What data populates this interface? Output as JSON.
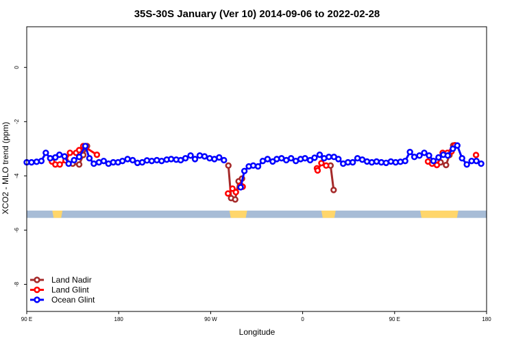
{
  "chart_data": {
    "type": "line",
    "title": "35S-30S January (Ver 10)   2014-09-06 to 2022-02-28",
    "xlabel": "Longitude",
    "ylabel": "XCO2 - MLO trend (ppm)",
    "xlim": [
      -270,
      -135
    ],
    "ylim": [
      -9,
      1.5
    ],
    "x_ticks": [
      {
        "value": -270,
        "label": "90 E"
      },
      {
        "value": -243,
        "label": "180"
      },
      {
        "value": -216,
        "label": "90 W"
      },
      {
        "value": -189,
        "label": "0"
      },
      {
        "value": -162,
        "label": "90 E"
      },
      {
        "value": -135,
        "label": "180"
      }
    ],
    "y_ticks": [
      {
        "value": 0,
        "label": "0"
      },
      {
        "value": -2,
        "label": "-2"
      },
      {
        "value": -4,
        "label": "-4"
      },
      {
        "value": -6,
        "label": "-6"
      },
      {
        "value": -8,
        "label": "-8"
      }
    ],
    "grid": false,
    "legend_position": "bottom-left",
    "land_strip": {
      "y_top": -5.28,
      "y_bottom": -5.55,
      "ocean_color": "#a7bcd6",
      "land_color": "#ffd66b",
      "land_segments": [
        [
          -262.5,
          -259.5
        ],
        [
          -210.5,
          -205.3
        ],
        [
          -183.5,
          -179.3
        ],
        [
          -154.5,
          -143.3
        ]
      ]
    },
    "series": [
      {
        "name": "Land Nadir",
        "color": "#a52a2a",
        "segments": [
          [
            [
              -256.5,
              -3.55
            ],
            [
              -254.6,
              -3.58
            ],
            [
              -253.4,
              -3.23
            ],
            [
              -252.3,
              -2.9
            ]
          ],
          [
            [
              -210.8,
              -3.62
            ],
            [
              -210.0,
              -4.82
            ],
            [
              -208.8,
              -4.87
            ],
            [
              -207.8,
              -4.2
            ],
            [
              -206.8,
              -4.1
            ]
          ],
          [
            [
              -180.8,
              -3.62
            ],
            [
              -179.9,
              -4.52
            ]
          ],
          [
            [
              -148.5,
              -3.5
            ],
            [
              -146.9,
              -3.6
            ],
            [
              -145.9,
              -3.23
            ],
            [
              -144.8,
              -2.88
            ]
          ]
        ]
      },
      {
        "name": "Land Glint",
        "color": "#ff0000",
        "segments": [
          [
            [
              -262.6,
              -3.47
            ],
            [
              -261.6,
              -3.58
            ],
            [
              -260.3,
              -3.58
            ],
            [
              -258.6,
              -3.43
            ],
            [
              -257.3,
              -3.15
            ],
            [
              -255.5,
              -3.15
            ],
            [
              -254.6,
              -3.05
            ],
            [
              -253.4,
              -2.9
            ],
            [
              -249.4,
              -3.22
            ]
          ],
          [
            [
              -210.9,
              -4.65
            ],
            [
              -209.6,
              -4.47
            ],
            [
              -208.6,
              -4.6
            ],
            [
              -207.2,
              -4.35
            ],
            [
              -206.6,
              -4.4
            ]
          ],
          [
            [
              -184.8,
              -3.72
            ],
            [
              -184.6,
              -3.8
            ],
            [
              -183.5,
              -3.53
            ],
            [
              -182.1,
              -3.62
            ]
          ],
          [
            [
              -152.2,
              -3.47
            ],
            [
              -151.0,
              -3.55
            ],
            [
              -149.6,
              -3.6
            ],
            [
              -147.9,
              -3.15
            ],
            [
              -146.5,
              -3.15
            ],
            [
              -145.3,
              -3.1
            ],
            [
              -144.3,
              -2.87
            ]
          ],
          [
            [
              -138.1,
              -3.23
            ]
          ]
        ]
      },
      {
        "name": "Ocean Glint",
        "color": "#0000ff",
        "segments": [
          [
            [
              -270.0,
              -3.5
            ],
            [
              -268.6,
              -3.5
            ],
            [
              -267.1,
              -3.48
            ],
            [
              -265.7,
              -3.45
            ],
            [
              -264.4,
              -3.15
            ],
            [
              -263.1,
              -3.35
            ],
            [
              -261.6,
              -3.32
            ],
            [
              -260.4,
              -3.22
            ],
            [
              -258.9,
              -3.28
            ],
            [
              -257.7,
              -3.55
            ],
            [
              -256.1,
              -3.42
            ],
            [
              -254.6,
              -3.3
            ],
            [
              -252.8,
              -2.9
            ],
            [
              -251.6,
              -3.35
            ],
            [
              -250.3,
              -3.55
            ],
            [
              -248.8,
              -3.5
            ],
            [
              -247.4,
              -3.45
            ],
            [
              -246.0,
              -3.55
            ],
            [
              -244.6,
              -3.5
            ],
            [
              -243.2,
              -3.5
            ],
            [
              -241.9,
              -3.45
            ],
            [
              -240.4,
              -3.38
            ],
            [
              -238.9,
              -3.42
            ],
            [
              -237.5,
              -3.52
            ],
            [
              -236.1,
              -3.5
            ],
            [
              -234.7,
              -3.43
            ],
            [
              -233.3,
              -3.45
            ],
            [
              -231.8,
              -3.42
            ],
            [
              -230.4,
              -3.45
            ],
            [
              -228.9,
              -3.4
            ],
            [
              -227.6,
              -3.38
            ],
            [
              -226.1,
              -3.4
            ],
            [
              -224.8,
              -3.42
            ],
            [
              -223.4,
              -3.35
            ],
            [
              -221.9,
              -3.25
            ],
            [
              -220.6,
              -3.38
            ],
            [
              -219.2,
              -3.25
            ],
            [
              -217.8,
              -3.28
            ],
            [
              -216.3,
              -3.35
            ],
            [
              -214.9,
              -3.38
            ],
            [
              -213.5,
              -3.32
            ],
            [
              -212.1,
              -3.42
            ]
          ],
          [
            [
              -207.2,
              -4.42
            ],
            [
              -206.1,
              -3.82
            ],
            [
              -204.8,
              -3.65
            ],
            [
              -203.5,
              -3.62
            ],
            [
              -202.1,
              -3.65
            ],
            [
              -200.7,
              -3.45
            ],
            [
              -199.3,
              -3.38
            ],
            [
              -197.8,
              -3.47
            ],
            [
              -196.6,
              -3.38
            ],
            [
              -195.2,
              -3.35
            ],
            [
              -193.8,
              -3.42
            ],
            [
              -192.4,
              -3.35
            ],
            [
              -191.0,
              -3.45
            ],
            [
              -189.6,
              -3.38
            ],
            [
              -188.3,
              -3.35
            ],
            [
              -186.8,
              -3.42
            ],
            [
              -185.5,
              -3.33
            ],
            [
              -184.0,
              -3.22
            ],
            [
              -182.7,
              -3.35
            ],
            [
              -181.3,
              -3.3
            ],
            [
              -179.8,
              -3.3
            ],
            [
              -178.5,
              -3.38
            ],
            [
              -177.1,
              -3.55
            ],
            [
              -175.7,
              -3.5
            ],
            [
              -174.3,
              -3.5
            ],
            [
              -172.9,
              -3.35
            ],
            [
              -171.5,
              -3.4
            ],
            [
              -170.1,
              -3.47
            ],
            [
              -168.7,
              -3.5
            ],
            [
              -167.3,
              -3.47
            ],
            [
              -165.9,
              -3.5
            ],
            [
              -164.5,
              -3.52
            ],
            [
              -163.1,
              -3.47
            ],
            [
              -161.7,
              -3.5
            ],
            [
              -160.3,
              -3.48
            ],
            [
              -158.9,
              -3.45
            ],
            [
              -157.5,
              -3.12
            ],
            [
              -156.2,
              -3.3
            ],
            [
              -154.7,
              -3.25
            ],
            [
              -153.3,
              -3.15
            ],
            [
              -151.9,
              -3.25
            ],
            [
              -150.6,
              -3.45
            ],
            [
              -149.1,
              -3.32
            ],
            [
              -147.7,
              -3.22
            ],
            [
              -146.4,
              -3.25
            ],
            [
              -144.9,
              -3.0
            ],
            [
              -143.6,
              -2.88
            ],
            [
              -142.2,
              -3.35
            ],
            [
              -140.8,
              -3.58
            ],
            [
              -139.4,
              -3.45
            ],
            [
              -138.0,
              -3.45
            ],
            [
              -136.6,
              -3.55
            ]
          ]
        ]
      }
    ]
  }
}
